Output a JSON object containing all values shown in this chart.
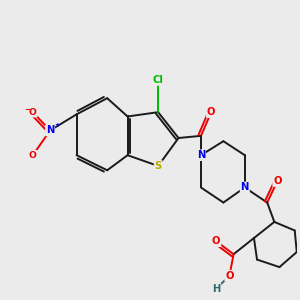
{
  "bg_color": "#ebebeb",
  "bond_color": "#1a1a1a",
  "bond_width": 1.4,
  "atom_colors": {
    "C": "#1a1a1a",
    "N": "#0000ee",
    "O": "#ee0000",
    "S": "#bbaa00",
    "Cl": "#00bb00",
    "H": "#336666",
    "NO2_N": "#0000ee",
    "NO2_O": "#ee0000"
  },
  "figsize": [
    3.0,
    3.0
  ],
  "dpi": 100
}
